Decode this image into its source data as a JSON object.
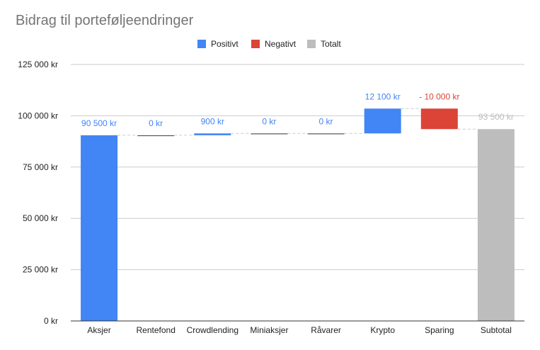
{
  "chart_data": {
    "type": "waterfall",
    "title": "Bidrag til porteføljeendringer",
    "legend": {
      "placement": "top-center",
      "items": [
        {
          "label": "Positivt",
          "color": "#4285f4"
        },
        {
          "label": "Negativt",
          "color": "#db4437"
        },
        {
          "label": "Totalt",
          "color": "#bdbdbd"
        }
      ]
    },
    "y_axis": {
      "ylim": [
        0,
        125000
      ],
      "ticks": [
        0,
        25000,
        50000,
        75000,
        100000,
        125000
      ],
      "tick_labels": [
        "0 kr",
        "25 000 kr",
        "50 000 kr",
        "75 000 kr",
        "100 000 kr",
        "125 000 kr"
      ],
      "grid": true
    },
    "categories": [
      "Aksjer",
      "Rentefond",
      "Crowdlending",
      "Miniaksjer",
      "Råvarer",
      "Krypto",
      "Sparing",
      "Subtotal"
    ],
    "steps": [
      {
        "category": "Aksjer",
        "value": 90500,
        "kind": "positive",
        "label": "90 500 kr"
      },
      {
        "category": "Rentefond",
        "value": 0,
        "kind": "positive",
        "label": "0 kr"
      },
      {
        "category": "Crowdlending",
        "value": 900,
        "kind": "positive",
        "label": "900 kr"
      },
      {
        "category": "Miniaksjer",
        "value": 0,
        "kind": "positive",
        "label": "0 kr"
      },
      {
        "category": "Råvarer",
        "value": 0,
        "kind": "positive",
        "label": "0 kr"
      },
      {
        "category": "Krypto",
        "value": 12100,
        "kind": "positive",
        "label": "12 100 kr"
      },
      {
        "category": "Sparing",
        "value": -10000,
        "kind": "negative",
        "label": "- 10 000 kr"
      },
      {
        "category": "Subtotal",
        "value": 93500,
        "kind": "total",
        "label": "93 500 kr"
      }
    ],
    "colors": {
      "positive": "#4285f4",
      "negative": "#db4437",
      "total": "#bdbdbd",
      "positive_label": "#4285f4",
      "negative_label": "#db4437",
      "total_label": "#bdbdbd",
      "grid": "#cccccc",
      "axis": "#333333",
      "connector": "#cccccc"
    }
  }
}
